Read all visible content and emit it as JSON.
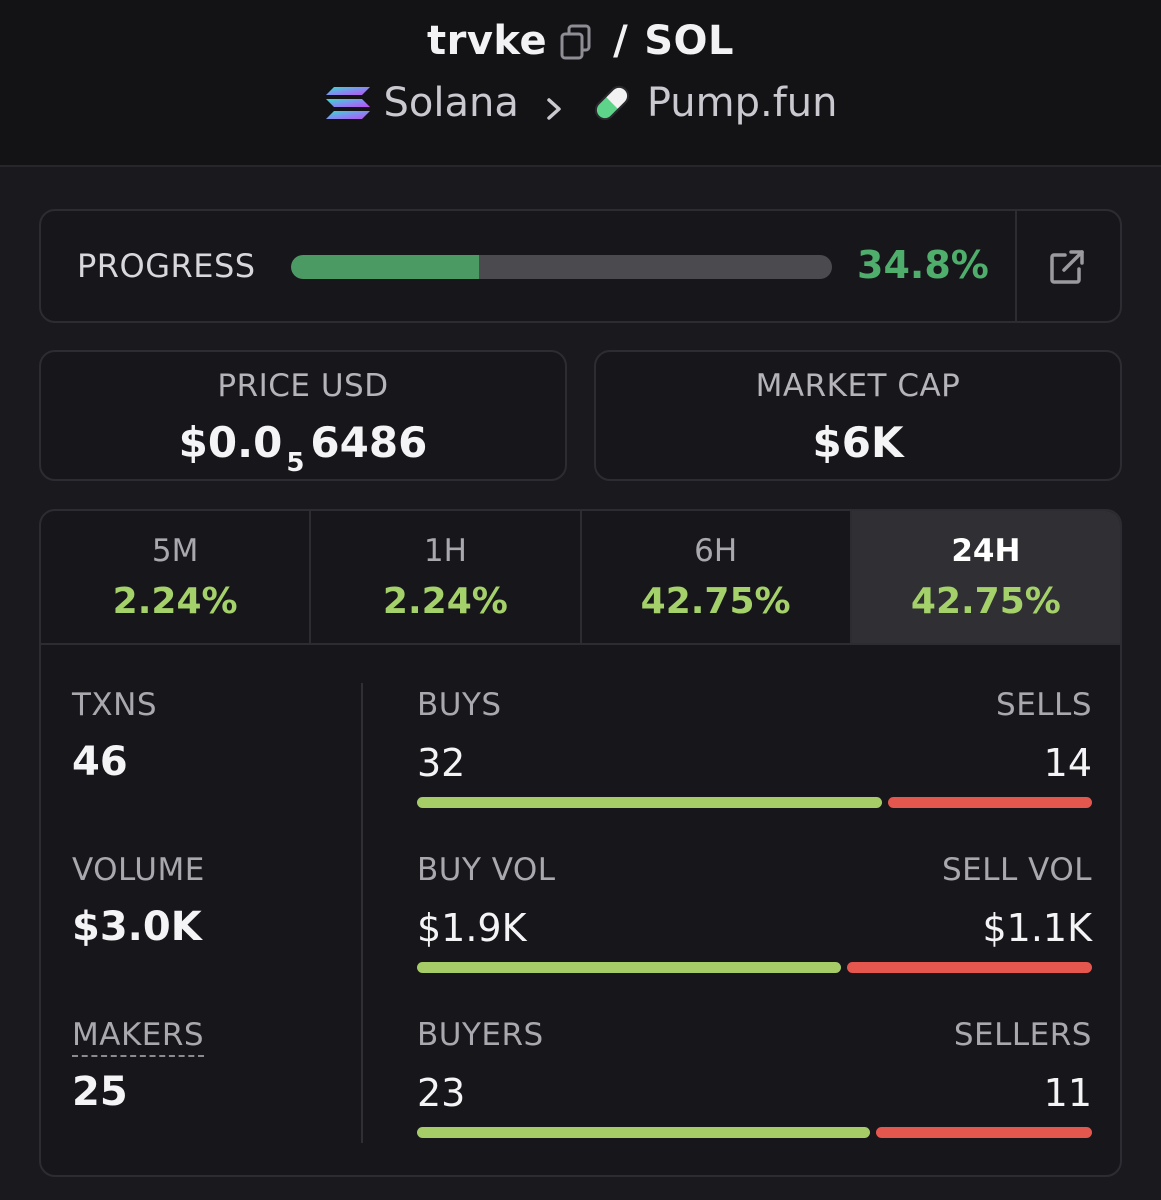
{
  "header": {
    "token": "trvke",
    "slash": "/",
    "quote": "SOL",
    "chain": "Solana",
    "dex": "Pump.fun"
  },
  "progress": {
    "label": "PROGRESS",
    "value_text": "34.8%",
    "fraction": 0.348
  },
  "price": {
    "label": "PRICE USD",
    "prefix": "$0.0",
    "zeros": "5",
    "digits": "6486"
  },
  "market_cap": {
    "label": "MARKET CAP",
    "value": "$6K"
  },
  "timeframes": [
    {
      "label": "5M",
      "value": "2.24%"
    },
    {
      "label": "1H",
      "value": "2.24%"
    },
    {
      "label": "6H",
      "value": "42.75%"
    },
    {
      "label": "24H",
      "value": "42.75%"
    }
  ],
  "active_timeframe": "24H",
  "metrics": {
    "txns_label": "TXNS",
    "txns_value": "46",
    "volume_label": "VOLUME",
    "volume_value": "$3.0K",
    "makers_label": "MAKERS",
    "makers_value": "25"
  },
  "splits": {
    "txns": {
      "left_label": "BUYS",
      "right_label": "SELLS",
      "left_value": "32",
      "right_value": "14",
      "left": 32,
      "right": 14
    },
    "volume": {
      "left_label": "BUY VOL",
      "right_label": "SELL VOL",
      "left_value": "$1.9K",
      "right_value": "$1.1K",
      "left": 1.9,
      "right": 1.1
    },
    "makers": {
      "left_label": "BUYERS",
      "right_label": "SELLERS",
      "left_value": "23",
      "right_value": "11",
      "left": 23,
      "right": 11
    }
  },
  "colors": {
    "progress_green": "#4c9a63",
    "positive_green": "#a5d16a",
    "buy_bar": "#a5cc66",
    "sell_bar": "#e4574f"
  },
  "icons": [
    "copy-icon",
    "solana-logo-icon",
    "chevron-right-icon",
    "pill-logo-icon",
    "external-link-icon"
  ]
}
